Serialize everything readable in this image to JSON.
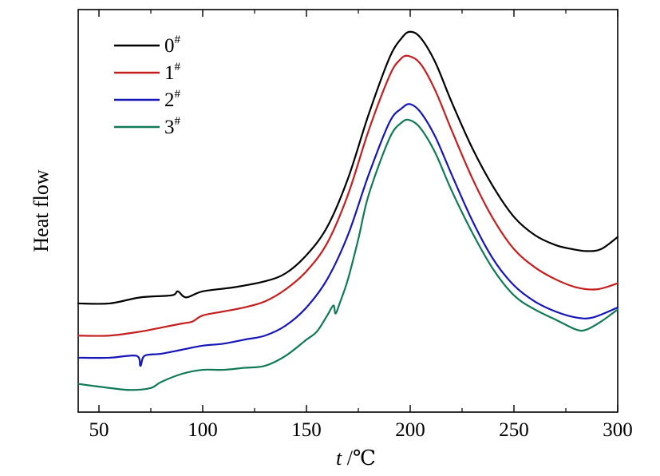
{
  "chart_data": {
    "type": "line",
    "title": "",
    "xlabel": "t /℃",
    "xlabel_italic_part": "t",
    "xlabel_rest": " /℃",
    "ylabel": "Heat flow",
    "xlim": [
      40,
      300
    ],
    "x_ticks": [
      50,
      100,
      150,
      200,
      250,
      300
    ],
    "y_ticks_shown": false,
    "grid": false,
    "legend_placement": "top-left",
    "series": [
      {
        "name": "0#",
        "name_base": "0",
        "name_sup": "#",
        "color": "#000000",
        "points": [
          [
            40,
            0.27
          ],
          [
            55,
            0.27
          ],
          [
            70,
            0.285
          ],
          [
            85,
            0.29
          ],
          [
            88,
            0.3
          ],
          [
            92,
            0.285
          ],
          [
            100,
            0.3
          ],
          [
            115,
            0.31
          ],
          [
            130,
            0.325
          ],
          [
            140,
            0.345
          ],
          [
            150,
            0.39
          ],
          [
            160,
            0.46
          ],
          [
            170,
            0.58
          ],
          [
            180,
            0.74
          ],
          [
            190,
            0.88
          ],
          [
            196,
            0.93
          ],
          [
            200,
            0.945
          ],
          [
            205,
            0.93
          ],
          [
            212,
            0.87
          ],
          [
            220,
            0.77
          ],
          [
            230,
            0.655
          ],
          [
            240,
            0.56
          ],
          [
            250,
            0.485
          ],
          [
            260,
            0.44
          ],
          [
            270,
            0.415
          ],
          [
            278,
            0.405
          ],
          [
            285,
            0.4
          ],
          [
            292,
            0.405
          ],
          [
            300,
            0.435
          ]
        ]
      },
      {
        "name": "1#",
        "name_base": "1",
        "name_sup": "#",
        "color": "#c41e1e",
        "points": [
          [
            40,
            0.19
          ],
          [
            55,
            0.19
          ],
          [
            70,
            0.2
          ],
          [
            80,
            0.21
          ],
          [
            90,
            0.22
          ],
          [
            95,
            0.225
          ],
          [
            100,
            0.24
          ],
          [
            110,
            0.25
          ],
          [
            120,
            0.26
          ],
          [
            130,
            0.275
          ],
          [
            140,
            0.305
          ],
          [
            150,
            0.35
          ],
          [
            160,
            0.42
          ],
          [
            170,
            0.54
          ],
          [
            180,
            0.7
          ],
          [
            190,
            0.835
          ],
          [
            195,
            0.875
          ],
          [
            199,
            0.885
          ],
          [
            205,
            0.865
          ],
          [
            212,
            0.8
          ],
          [
            220,
            0.7
          ],
          [
            230,
            0.58
          ],
          [
            240,
            0.48
          ],
          [
            250,
            0.405
          ],
          [
            260,
            0.36
          ],
          [
            270,
            0.33
          ],
          [
            280,
            0.31
          ],
          [
            290,
            0.305
          ],
          [
            300,
            0.32
          ]
        ]
      },
      {
        "name": "2#",
        "name_base": "2",
        "name_sup": "#",
        "color": "#1515b8",
        "points": [
          [
            40,
            0.135
          ],
          [
            55,
            0.135
          ],
          [
            68,
            0.14
          ],
          [
            70,
            0.115
          ],
          [
            72,
            0.14
          ],
          [
            80,
            0.145
          ],
          [
            90,
            0.155
          ],
          [
            100,
            0.165
          ],
          [
            110,
            0.17
          ],
          [
            120,
            0.18
          ],
          [
            130,
            0.19
          ],
          [
            140,
            0.215
          ],
          [
            150,
            0.26
          ],
          [
            160,
            0.33
          ],
          [
            170,
            0.44
          ],
          [
            180,
            0.59
          ],
          [
            190,
            0.72
          ],
          [
            196,
            0.755
          ],
          [
            200,
            0.765
          ],
          [
            205,
            0.745
          ],
          [
            212,
            0.685
          ],
          [
            220,
            0.59
          ],
          [
            230,
            0.475
          ],
          [
            240,
            0.38
          ],
          [
            250,
            0.315
          ],
          [
            260,
            0.275
          ],
          [
            270,
            0.25
          ],
          [
            280,
            0.235
          ],
          [
            288,
            0.235
          ],
          [
            300,
            0.26
          ]
        ]
      },
      {
        "name": "3#",
        "name_base": "3",
        "name_sup": "#",
        "color": "#0f7a55",
        "points": [
          [
            40,
            0.07
          ],
          [
            55,
            0.06
          ],
          [
            65,
            0.055
          ],
          [
            75,
            0.06
          ],
          [
            80,
            0.075
          ],
          [
            90,
            0.095
          ],
          [
            100,
            0.105
          ],
          [
            110,
            0.105
          ],
          [
            120,
            0.11
          ],
          [
            130,
            0.115
          ],
          [
            140,
            0.14
          ],
          [
            150,
            0.18
          ],
          [
            155,
            0.2
          ],
          [
            160,
            0.24
          ],
          [
            163,
            0.265
          ],
          [
            164,
            0.245
          ],
          [
            166,
            0.27
          ],
          [
            170,
            0.33
          ],
          [
            175,
            0.43
          ],
          [
            180,
            0.54
          ],
          [
            190,
            0.68
          ],
          [
            196,
            0.72
          ],
          [
            200,
            0.725
          ],
          [
            205,
            0.705
          ],
          [
            212,
            0.645
          ],
          [
            220,
            0.55
          ],
          [
            230,
            0.445
          ],
          [
            240,
            0.355
          ],
          [
            250,
            0.29
          ],
          [
            260,
            0.255
          ],
          [
            270,
            0.23
          ],
          [
            280,
            0.205
          ],
          [
            285,
            0.205
          ],
          [
            292,
            0.225
          ],
          [
            300,
            0.255
          ]
        ]
      }
    ]
  }
}
